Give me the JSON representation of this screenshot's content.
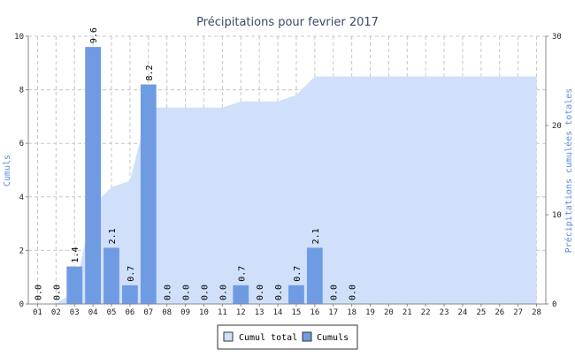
{
  "chart_data": {
    "type": "bar",
    "title": "Précipitations pour fevrier 2017",
    "ylabel": "Cumuls",
    "y2label": "Précipitations cumulées totales",
    "categories": [
      "01",
      "02",
      "03",
      "04",
      "05",
      "06",
      "07",
      "08",
      "09",
      "10",
      "11",
      "12",
      "13",
      "14",
      "15",
      "16",
      "17",
      "18",
      "19",
      "20",
      "21",
      "22",
      "23",
      "24",
      "25",
      "26",
      "27",
      "28"
    ],
    "ylim": [
      0,
      10
    ],
    "y2lim": [
      0,
      30
    ],
    "yticks": [
      "0",
      "2",
      "4",
      "6",
      "8",
      "10"
    ],
    "y2ticks": [
      "0",
      "10",
      "20",
      "30"
    ],
    "grid": true,
    "legend_position": "bottom-center",
    "series": [
      {
        "name": "Cumul total",
        "type": "area",
        "axis": "right",
        "color": "#d0e0fa",
        "values": [
          0.0,
          0.0,
          1.4,
          11.0,
          13.1,
          13.8,
          22.0,
          22.0,
          22.0,
          22.0,
          22.0,
          22.7,
          22.7,
          22.7,
          23.4,
          25.5,
          25.5,
          25.5,
          25.5,
          25.5,
          25.5,
          25.5,
          25.5,
          25.5,
          25.5,
          25.5,
          25.5,
          25.5
        ]
      },
      {
        "name": "Cumuls",
        "type": "bar",
        "axis": "left",
        "color": "#6f9be3",
        "values": [
          0.0,
          0.0,
          1.4,
          9.6,
          2.1,
          0.7,
          8.2,
          0.0,
          0.0,
          0.0,
          0.0,
          0.7,
          0.0,
          0.0,
          0.7,
          2.1,
          0.0,
          0.0,
          null,
          null,
          null,
          null,
          null,
          null,
          null,
          null,
          null,
          null
        ],
        "labels": [
          "0.0",
          "0.0",
          "1.4",
          "9.6",
          "2.1",
          "0.7",
          "8.2",
          "0.0",
          "0.0",
          "0.0",
          "0.0",
          "0.7",
          "0.0",
          "0.0",
          "0.7",
          "2.1",
          "0.0",
          "0.0",
          null,
          null,
          null,
          null,
          null,
          null,
          null,
          null,
          null,
          null
        ]
      }
    ]
  }
}
